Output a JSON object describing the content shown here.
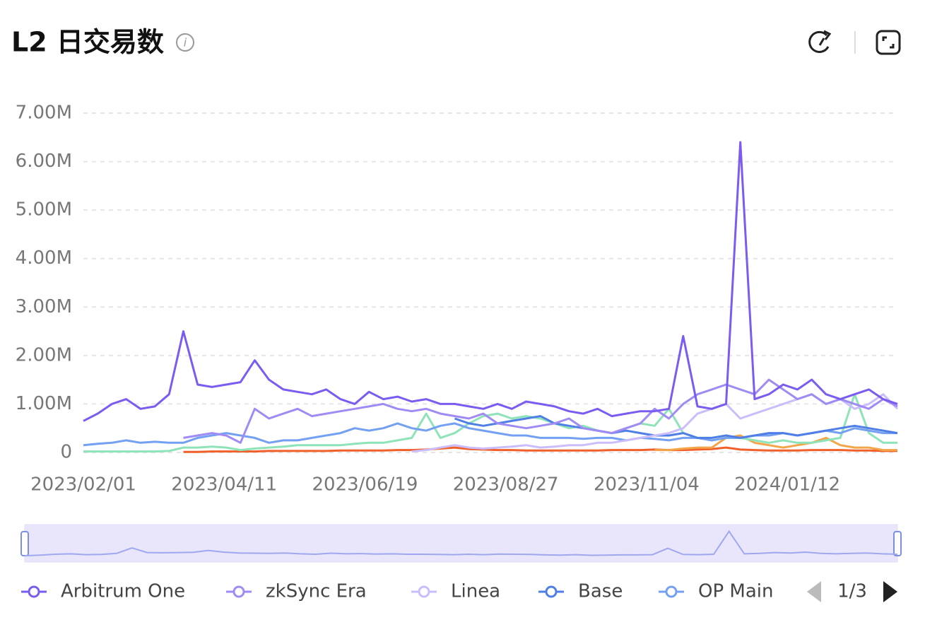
{
  "chart_data": {
    "type": "line",
    "title": "L2 日交易数",
    "x": [
      "2023/02/01",
      "2023/02/08",
      "2023/02/15",
      "2023/02/22",
      "2023/03/01",
      "2023/03/08",
      "2023/03/15",
      "2023/03/22",
      "2023/03/29",
      "2023/04/05",
      "2023/04/12",
      "2023/04/19",
      "2023/04/26",
      "2023/05/03",
      "2023/05/10",
      "2023/05/17",
      "2023/05/24",
      "2023/05/31",
      "2023/06/07",
      "2023/06/14",
      "2023/06/21",
      "2023/06/28",
      "2023/07/05",
      "2023/07/12",
      "2023/07/19",
      "2023/07/26",
      "2023/08/02",
      "2023/08/09",
      "2023/08/16",
      "2023/08/23",
      "2023/08/30",
      "2023/09/06",
      "2023/09/13",
      "2023/09/20",
      "2023/09/27",
      "2023/10/04",
      "2023/10/11",
      "2023/10/18",
      "2023/10/25",
      "2023/11/01",
      "2023/11/08",
      "2023/11/15",
      "2023/11/22",
      "2023/11/29",
      "2023/12/06",
      "2023/12/13",
      "2023/12/20",
      "2023/12/27",
      "2024/01/03",
      "2024/01/10",
      "2024/01/17",
      "2024/01/24",
      "2024/01/31",
      "2024/02/07",
      "2024/02/14",
      "2024/02/21",
      "2024/02/28",
      "2024/03/06"
    ],
    "xlim": [
      "2023/02/01",
      "2024/03/06"
    ],
    "xticks": [
      "2023/02/01",
      "2023/04/11",
      "2023/06/19",
      "2023/08/27",
      "2023/11/04",
      "2024/01/12"
    ],
    "ylim": [
      0,
      7000000
    ],
    "yticks": [
      0,
      {
        "value": 1000000,
        "label": "1.00M"
      },
      {
        "value": 2000000,
        "label": "2.00M"
      },
      {
        "value": 3000000,
        "label": "3.00M"
      },
      {
        "value": 4000000,
        "label": "4.00M"
      },
      {
        "value": 5000000,
        "label": "5.00M"
      },
      {
        "value": 6000000,
        "label": "6.00M"
      },
      {
        "value": 7000000,
        "label": "7.00M"
      }
    ],
    "grid": true,
    "legend_page": "1/3",
    "series": [
      {
        "name": "Arbitrum One",
        "color": "#7b5cf0",
        "values": [
          650000,
          800000,
          1000000,
          1100000,
          900000,
          950000,
          1200000,
          2500000,
          1400000,
          1350000,
          1400000,
          1450000,
          1900000,
          1500000,
          1300000,
          1250000,
          1200000,
          1300000,
          1100000,
          1000000,
          1250000,
          1100000,
          1150000,
          1050000,
          1100000,
          1000000,
          1000000,
          950000,
          900000,
          1000000,
          900000,
          1050000,
          1000000,
          950000,
          850000,
          800000,
          900000,
          750000,
          800000,
          850000,
          850000,
          900000,
          2400000,
          950000,
          900000,
          1000000,
          6400000,
          1100000,
          1200000,
          1400000,
          1300000,
          1500000,
          1200000,
          1100000,
          1200000,
          1300000,
          1100000,
          1000000
        ]
      },
      {
        "name": "zkSync Era",
        "color": "#a08bf5",
        "values": [
          null,
          null,
          null,
          null,
          null,
          null,
          null,
          300000,
          350000,
          400000,
          350000,
          200000,
          900000,
          700000,
          800000,
          900000,
          750000,
          800000,
          850000,
          900000,
          950000,
          1000000,
          900000,
          850000,
          900000,
          800000,
          750000,
          700000,
          800000,
          600000,
          550000,
          500000,
          550000,
          600000,
          700000,
          500000,
          450000,
          400000,
          500000,
          600000,
          900000,
          700000,
          1000000,
          1200000,
          1300000,
          1400000,
          1300000,
          1200000,
          1500000,
          1300000,
          1100000,
          1200000,
          1000000,
          1100000,
          1000000,
          900000,
          1100000,
          950000
        ]
      },
      {
        "name": "Linea",
        "color": "#cbbdfb",
        "values": [
          null,
          null,
          null,
          null,
          null,
          null,
          null,
          null,
          null,
          null,
          null,
          null,
          null,
          null,
          null,
          null,
          null,
          null,
          null,
          null,
          null,
          null,
          null,
          20000,
          50000,
          100000,
          150000,
          100000,
          80000,
          100000,
          120000,
          150000,
          100000,
          120000,
          150000,
          150000,
          200000,
          200000,
          250000,
          300000,
          350000,
          400000,
          500000,
          800000,
          900000,
          1000000,
          700000,
          800000,
          900000,
          1000000,
          1100000,
          1200000,
          1000000,
          1100000,
          900000,
          1000000,
          1200000,
          900000
        ]
      },
      {
        "name": "Base",
        "color": "#4f7fe6",
        "values": [
          null,
          null,
          null,
          null,
          null,
          null,
          null,
          null,
          null,
          null,
          null,
          null,
          null,
          null,
          null,
          null,
          null,
          null,
          null,
          null,
          null,
          null,
          null,
          null,
          null,
          null,
          700000,
          600000,
          550000,
          600000,
          650000,
          700000,
          750000,
          600000,
          550000,
          500000,
          450000,
          400000,
          450000,
          400000,
          350000,
          350000,
          400000,
          300000,
          300000,
          350000,
          300000,
          350000,
          400000,
          400000,
          350000,
          400000,
          450000,
          500000,
          550000,
          500000,
          450000,
          400000
        ]
      },
      {
        "name": "OP Main",
        "color": "#74a0f2",
        "values": [
          150000,
          180000,
          200000,
          250000,
          200000,
          220000,
          200000,
          200000,
          300000,
          350000,
          400000,
          350000,
          300000,
          200000,
          250000,
          250000,
          300000,
          350000,
          400000,
          500000,
          450000,
          500000,
          600000,
          500000,
          450000,
          550000,
          600000,
          500000,
          450000,
          400000,
          350000,
          350000,
          300000,
          300000,
          300000,
          280000,
          300000,
          300000,
          250000,
          300000,
          280000,
          250000,
          300000,
          300000,
          250000,
          300000,
          300000,
          350000,
          350000,
          400000,
          350000,
          400000,
          450000,
          400000,
          500000,
          450000,
          400000,
          400000
        ]
      },
      {
        "color": "#8fe3b8",
        "values": [
          20000,
          20000,
          20000,
          20000,
          20000,
          20000,
          30000,
          100000,
          100000,
          120000,
          100000,
          50000,
          80000,
          100000,
          120000,
          150000,
          150000,
          150000,
          150000,
          180000,
          200000,
          200000,
          250000,
          300000,
          800000,
          300000,
          400000,
          600000,
          750000,
          800000,
          700000,
          750000,
          700000,
          600000,
          500000,
          550000,
          450000,
          400000,
          500000,
          600000,
          550000,
          900000,
          400000,
          300000,
          250000,
          300000,
          300000,
          250000,
          200000,
          250000,
          200000,
          200000,
          250000,
          300000,
          1200000,
          400000,
          200000,
          200000
        ]
      },
      {
        "color": "#f3a54a",
        "values": [
          null,
          null,
          null,
          null,
          null,
          null,
          null,
          null,
          null,
          null,
          null,
          null,
          null,
          null,
          null,
          null,
          null,
          null,
          null,
          null,
          null,
          null,
          null,
          null,
          null,
          null,
          null,
          null,
          null,
          null,
          null,
          null,
          null,
          null,
          null,
          null,
          null,
          null,
          null,
          null,
          50000,
          50000,
          80000,
          100000,
          100000,
          300000,
          350000,
          200000,
          150000,
          100000,
          150000,
          200000,
          300000,
          150000,
          100000,
          100000,
          50000,
          50000
        ]
      },
      {
        "color": "#f0602a",
        "values": [
          null,
          null,
          null,
          null,
          null,
          null,
          null,
          10000,
          10000,
          20000,
          20000,
          20000,
          20000,
          30000,
          30000,
          30000,
          30000,
          30000,
          40000,
          40000,
          40000,
          40000,
          50000,
          50000,
          60000,
          80000,
          100000,
          70000,
          60000,
          50000,
          50000,
          40000,
          40000,
          40000,
          40000,
          40000,
          40000,
          50000,
          50000,
          50000,
          60000,
          50000,
          50000,
          60000,
          70000,
          100000,
          60000,
          50000,
          40000,
          40000,
          40000,
          50000,
          50000,
          50000,
          40000,
          40000,
          30000,
          30000
        ]
      }
    ]
  }
}
